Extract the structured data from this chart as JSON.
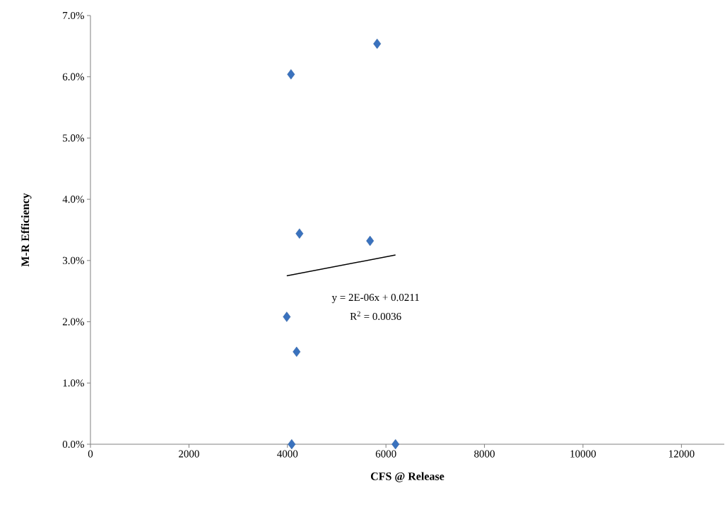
{
  "chart_data": {
    "type": "scatter",
    "xlabel": "CFS @ Release",
    "ylabel": "M-R Efficiency",
    "x": [
      4072,
      5821,
      4244,
      5677,
      3986,
      4186,
      4086,
      6194
    ],
    "series": [
      {
        "color": "#3a72be",
        "marker": "diamond",
        "values": [
          6.04,
          6.54,
          3.44,
          3.32,
          2.08,
          1.51,
          0,
          0
        ]
      },
      {
        "type": "line",
        "color": "#000000",
        "x": [
          3986,
          6194
        ],
        "values": [
          2.75,
          3.09
        ]
      }
    ],
    "annotations": [
      "y = 2E-06x + 0.0211",
      "R$^{2}$ = 0.0036"
    ],
    "xlim": [
      0,
      12870
    ],
    "ylim": [
      0,
      7
    ],
    "xticks": [
      0,
      2000,
      4000,
      6000,
      8000,
      10000,
      12000
    ],
    "yticks": [
      {
        "value": 0,
        "label": "0.0%"
      },
      {
        "value": 1,
        "label": "1.0%"
      },
      {
        "value": 2,
        "label": "2.0%"
      },
      {
        "value": 3,
        "label": "3.0%"
      },
      {
        "value": 4,
        "label": "4.0%"
      },
      {
        "value": 5,
        "label": "5.0%"
      },
      {
        "value": 6,
        "label": "6.0%"
      },
      {
        "value": 7,
        "label": "7.0%"
      }
    ],
    "grid": false
  }
}
